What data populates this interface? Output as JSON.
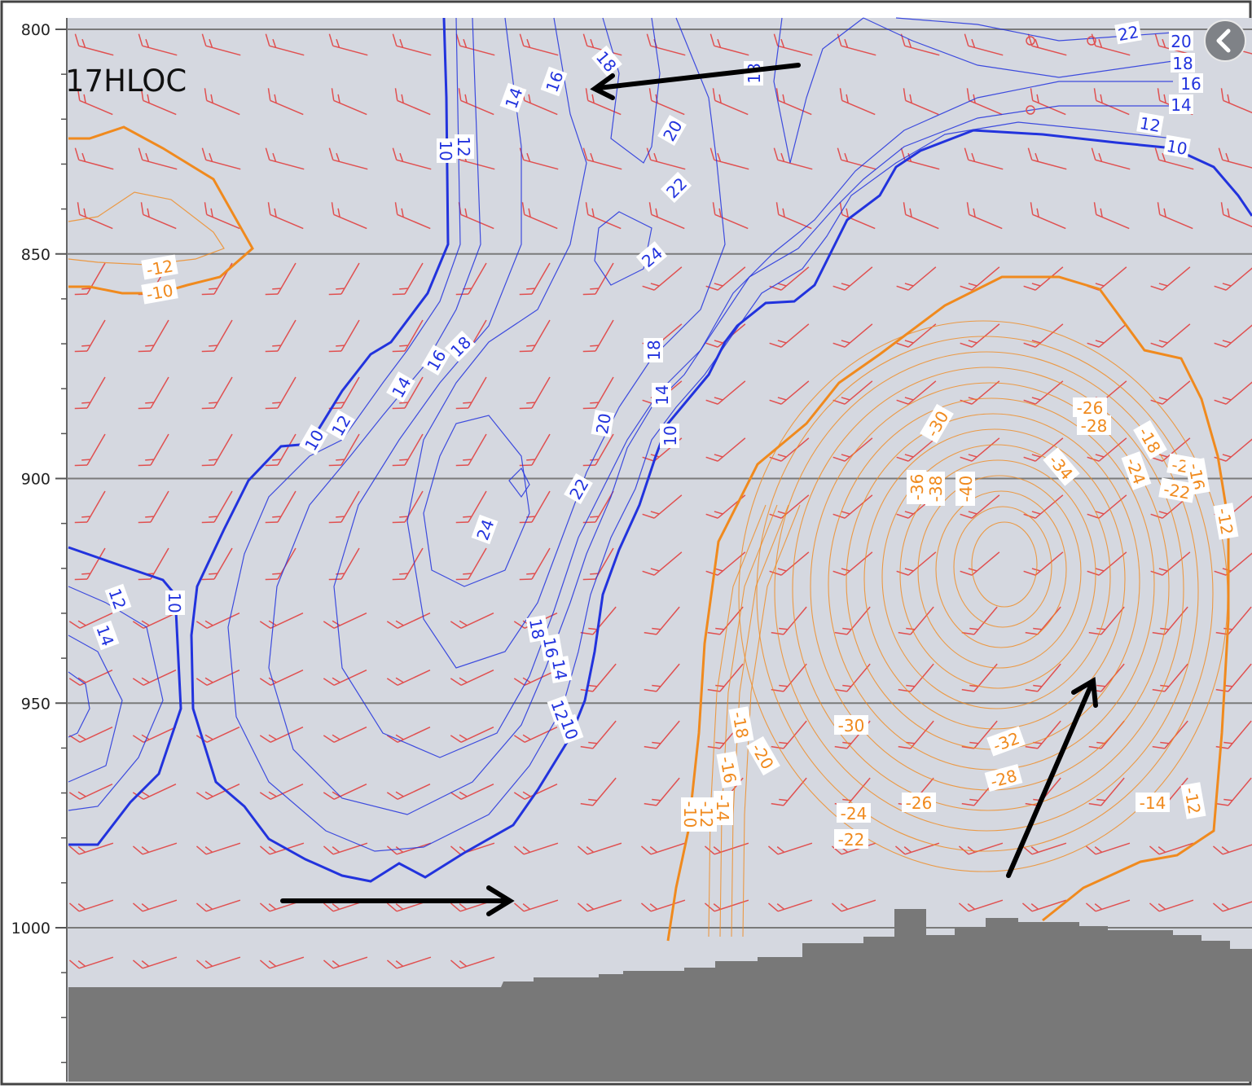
{
  "corner_label": "17HLOC",
  "colors": {
    "background": "#d5d8e0",
    "terrain": "#787878",
    "positive_contour": "#2233dd",
    "negative_contour": "#f08a1e",
    "wind_barb": "#e05050",
    "grid": "#7a7a7a",
    "arrow": "#000000"
  },
  "icons": {
    "back": "chevron-left-icon",
    "arrow": "arrow-icon"
  },
  "chart_data": {
    "type": "contour",
    "yaxis": {
      "ticks": [
        "800",
        "850",
        "900",
        "950",
        "1000"
      ],
      "inverted": true,
      "range": [
        800,
        1035
      ]
    },
    "grid": true,
    "wind_barbs": true,
    "positive_contour_labels": [
      "10",
      "12",
      "14",
      "16",
      "18",
      "20",
      "22",
      "24"
    ],
    "negative_contour_labels": [
      "-10",
      "-12",
      "-14",
      "-16",
      "-18",
      "-20",
      "-22",
      "-24",
      "-26",
      "-28",
      "-30",
      "-32",
      "-34",
      "-36",
      "-38",
      "-40"
    ],
    "annotation_arrows": 3
  }
}
